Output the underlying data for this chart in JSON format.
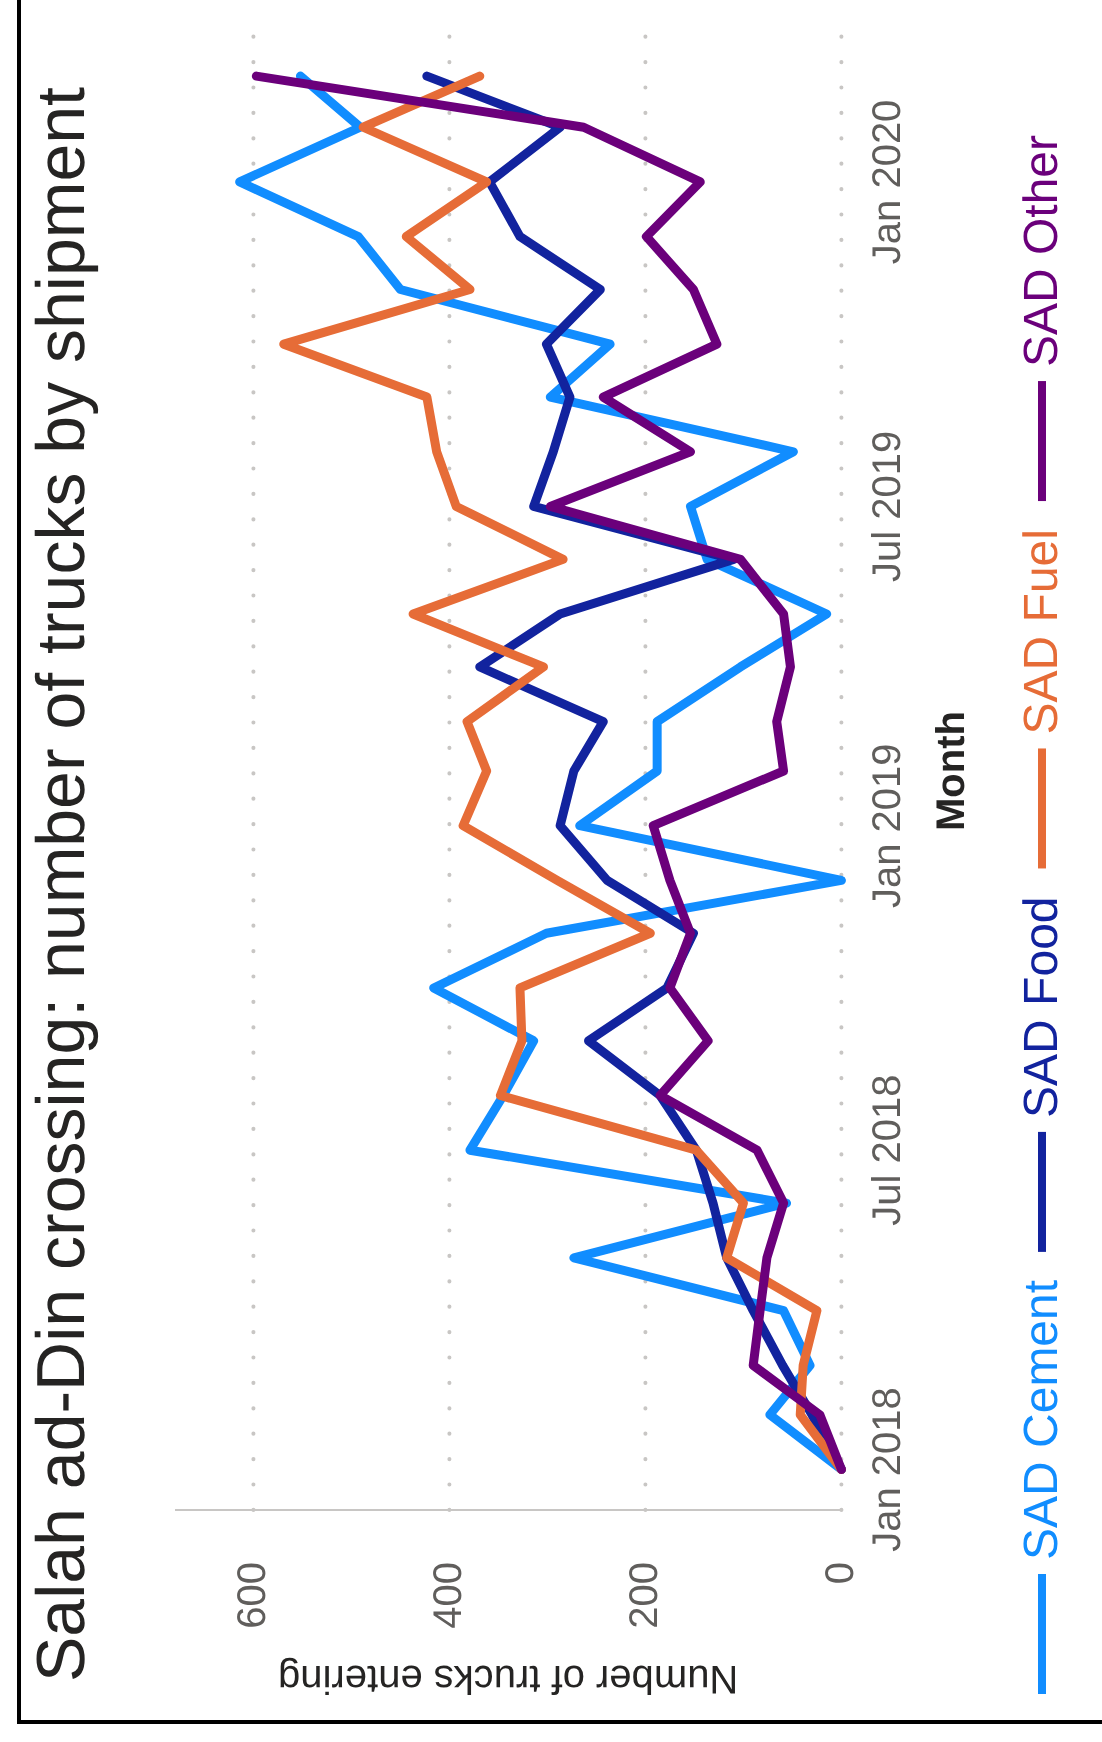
{
  "chart_data": {
    "type": "line",
    "orientation": "horizontal",
    "title": "Salah ad-Din crossing: number of trucks by shipment",
    "xlabel": "Number of trucks entering",
    "ylabel": "Month",
    "x": [
      "2018-01",
      "2018-02",
      "2018-03",
      "2018-04",
      "2018-05",
      "2018-06",
      "2018-07",
      "2018-08",
      "2018-09",
      "2018-10",
      "2018-11",
      "2018-12",
      "2019-01",
      "2019-02",
      "2019-03",
      "2019-04",
      "2019-05",
      "2019-06",
      "2019-07",
      "2019-08",
      "2019-09",
      "2019-10",
      "2019-11",
      "2019-12",
      "2020-01",
      "2020-02",
      "2020-03"
    ],
    "series": [
      {
        "name": "SAD Cement",
        "color": "#118dff",
        "values": [
          0,
          73,
          32,
          59,
          273,
          56,
          379,
          345,
          314,
          416,
          301,
          0,
          267,
          188,
          188,
          103,
          15,
          137,
          154,
          49,
          297,
          236,
          450,
          493,
          614,
          491,
          552
        ]
      },
      {
        "name": "SAD Food",
        "color": "#12239e",
        "values": [
          0,
          30,
          60,
          90,
          117,
          131,
          148,
          185,
          258,
          178,
          151,
          239,
          287,
          273,
          243,
          369,
          287,
          110,
          314,
          294,
          277,
          301,
          246,
          328,
          359,
          287,
          423
        ]
      },
      {
        "name": "SAD Fuel",
        "color": "#e66c37",
        "values": [
          0,
          42,
          39,
          25,
          117,
          100,
          148,
          348,
          326,
          328,
          195,
          290,
          386,
          362,
          382,
          304,
          437,
          284,
          393,
          413,
          423,
          569,
          379,
          444,
          362,
          488,
          369
        ]
      },
      {
        "name": "SAD Other",
        "color": "#6b007b",
        "values": [
          0,
          22,
          90,
          83,
          76,
          59,
          86,
          185,
          136,
          175,
          154,
          175,
          192,
          59,
          66,
          52,
          59,
          103,
          297,
          154,
          243,
          127,
          151,
          199,
          144,
          263,
          597
        ]
      }
    ],
    "xlim": [
      680,
      0
    ],
    "xticks": [
      0,
      200,
      400,
      600
    ],
    "ylim": [
      "2017-12-09",
      "2020-03-26"
    ],
    "yticks": [
      {
        "value": "2018-01",
        "label": "Jan 2018"
      },
      {
        "value": "2018-07",
        "label": "Jul 2018"
      },
      {
        "value": "2019-01",
        "label": "Jan 2019"
      },
      {
        "value": "2019-07",
        "label": "Jul 2019"
      },
      {
        "value": "2020-01",
        "label": "Jan 2020"
      }
    ],
    "grid": "x",
    "legend": "right"
  }
}
